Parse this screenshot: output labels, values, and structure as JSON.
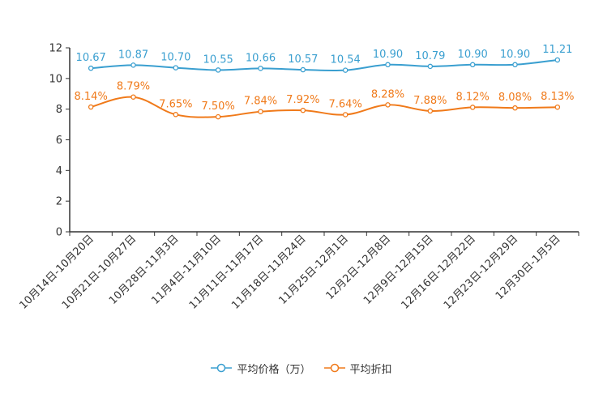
{
  "chart_data": {
    "type": "line",
    "categories": [
      "10月14日-10月20日",
      "10月21日-10月27日",
      "10月28日-11月3日",
      "11月4日-11月10日",
      "11月11日-11月17日",
      "11月18日-11月24日",
      "11月25日-12月1日",
      "12月2日-12月8日",
      "12月9日-12月15日",
      "12月16日-12月22日",
      "12月23日-12月29日",
      "12月30日-1月5日"
    ],
    "series": [
      {
        "name": "平均价格（万）",
        "color": "#3a9fd0",
        "values": [
          10.67,
          10.87,
          10.7,
          10.55,
          10.66,
          10.57,
          10.54,
          10.9,
          10.79,
          10.9,
          10.9,
          11.21
        ],
        "labels": [
          "10.67",
          "10.87",
          "10.70",
          "10.55",
          "10.66",
          "10.57",
          "10.54",
          "10.90",
          "10.79",
          "10.90",
          "10.90",
          "11.21"
        ]
      },
      {
        "name": "平均折扣",
        "color": "#f07a1a",
        "values": [
          8.14,
          8.79,
          7.65,
          7.5,
          7.84,
          7.92,
          7.64,
          8.28,
          7.88,
          8.12,
          8.08,
          8.13
        ],
        "labels": [
          "8.14%",
          "8.79%",
          "7.65%",
          "7.50%",
          "7.84%",
          "7.92%",
          "7.64%",
          "8.28%",
          "7.88%",
          "8.12%",
          "8.08%",
          "8.13%"
        ]
      }
    ],
    "y_ticks": [
      "0",
      "2",
      "4",
      "6",
      "8",
      "10",
      "12"
    ],
    "ylim": [
      0,
      12
    ],
    "title": "",
    "xlabel": "",
    "ylabel": "",
    "grid": false,
    "legend_position": "bottom"
  }
}
